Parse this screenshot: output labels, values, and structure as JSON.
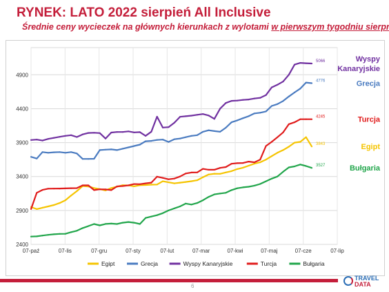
{
  "title": "RYNEK: LATO 2022 sierpień All Inclusive",
  "subtitle_pre": "Średnie ceny wycieczek na głównych kierunkach z wylotami ",
  "subtitle_u": "w pierwszym tygodniu sierpnia",
  "page_number": "6",
  "logo": {
    "line1": "TRAVEL",
    "line2": "DATA"
  },
  "chart_data": {
    "type": "line",
    "x_ticks": [
      "07-paź",
      "07-lis",
      "07-gru",
      "07-sty",
      "07-lut",
      "07-mar",
      "07-kwi",
      "07-maj",
      "07-cze",
      "07-lip"
    ],
    "y_ticks": [
      2400,
      2900,
      3400,
      3900,
      4400,
      4900
    ],
    "ylim": [
      2400,
      5300
    ],
    "grid": true,
    "legend_position": "bottom",
    "series": [
      {
        "name": "Egipt",
        "color": "#f5c400",
        "label": "Egipt",
        "values": [
          2950,
          2920,
          2940,
          2960,
          2980,
          3010,
          3050,
          3120,
          3185,
          3260,
          3254,
          3230,
          3215,
          3195,
          3230,
          3250,
          3272,
          3269,
          3256,
          3272,
          3275,
          3280,
          3282,
          3330,
          3315,
          3300,
          3310,
          3320,
          3331,
          3345,
          3390,
          3430,
          3441,
          3440,
          3460,
          3480,
          3510,
          3530,
          3560,
          3590,
          3610,
          3650,
          3700,
          3750,
          3790,
          3840,
          3900,
          3911,
          3980,
          3843
        ]
      },
      {
        "name": "Grecja",
        "color": "#4a7bc0",
        "label": "Grecja",
        "values": [
          3690,
          3665,
          3760,
          3750,
          3757,
          3760,
          3750,
          3760,
          3740,
          3660,
          3660,
          3662,
          3790,
          3796,
          3800,
          3790,
          3810,
          3830,
          3850,
          3870,
          3920,
          3925,
          3940,
          3945,
          3910,
          3950,
          3960,
          3980,
          4000,
          4010,
          4060,
          4082,
          4070,
          4060,
          4120,
          4200,
          4227,
          4260,
          4290,
          4330,
          4340,
          4360,
          4440,
          4468,
          4513,
          4580,
          4640,
          4697,
          4785,
          4776
        ]
      },
      {
        "name": "Wyspy Kanaryjskie",
        "color": "#7030a0",
        "label": "Wyspy\nKanaryjskie",
        "values": [
          3939,
          3945,
          3930,
          3955,
          3970,
          3985,
          4000,
          4010,
          3982,
          4021,
          4042,
          4045,
          4040,
          3960,
          4048,
          4057,
          4057,
          4066,
          4050,
          4055,
          4000,
          4061,
          4282,
          4122,
          4128,
          4192,
          4280,
          4289,
          4298,
          4310,
          4321,
          4300,
          4250,
          4400,
          4484,
          4515,
          4520,
          4530,
          4536,
          4550,
          4560,
          4600,
          4714,
          4753,
          4800,
          4900,
          5050,
          5075,
          5070,
          5066
        ]
      },
      {
        "name": "Turcja",
        "color": "#e01b1b",
        "label": "Turcja",
        "values": [
          2920,
          3160,
          3203,
          3221,
          3222,
          3223,
          3225,
          3228,
          3229,
          3270,
          3270,
          3200,
          3212,
          3210,
          3200,
          3255,
          3260,
          3270,
          3289,
          3287,
          3300,
          3310,
          3398,
          3380,
          3360,
          3370,
          3400,
          3445,
          3459,
          3460,
          3513,
          3500,
          3500,
          3527,
          3540,
          3588,
          3597,
          3600,
          3620,
          3610,
          3650,
          3850,
          3911,
          3979,
          4050,
          4172,
          4200,
          4245,
          4245,
          4245
        ]
      },
      {
        "name": "Bułgaria",
        "color": "#20a54a",
        "label": "Bułgaria",
        "values": [
          2515,
          2518,
          2530,
          2540,
          2549,
          2555,
          2556,
          2580,
          2600,
          2640,
          2670,
          2700,
          2680,
          2701,
          2706,
          2700,
          2719,
          2730,
          2720,
          2700,
          2790,
          2810,
          2830,
          2860,
          2900,
          2930,
          2960,
          3001,
          2987,
          3010,
          3050,
          3100,
          3137,
          3150,
          3160,
          3200,
          3227,
          3240,
          3250,
          3266,
          3290,
          3330,
          3369,
          3400,
          3470,
          3535,
          3550,
          3577,
          3555,
          3527
        ]
      }
    ]
  }
}
